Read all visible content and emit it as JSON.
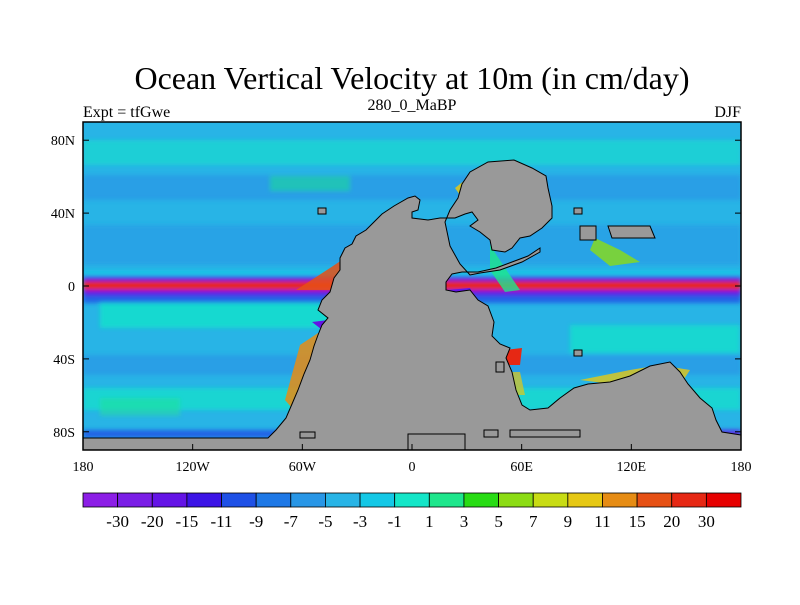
{
  "chart_data": {
    "type": "heatmap",
    "title": "Ocean Vertical Velocity at 10m (in cm/day)",
    "left_string": "Expt = tfGwe",
    "center_string": "280_0_MaBP",
    "right_string": "DJF",
    "x_range": [
      -180,
      180
    ],
    "y_range": [
      -90,
      90
    ],
    "x_ticks": [
      {
        "value": -180,
        "label": "180"
      },
      {
        "value": -120,
        "label": "120W"
      },
      {
        "value": -60,
        "label": "60W"
      },
      {
        "value": 0,
        "label": "0"
      },
      {
        "value": 60,
        "label": "60E"
      },
      {
        "value": 120,
        "label": "120E"
      },
      {
        "value": 180,
        "label": "180"
      }
    ],
    "y_ticks": [
      {
        "value": 80,
        "label": "80N"
      },
      {
        "value": 40,
        "label": "40N"
      },
      {
        "value": 0,
        "label": "0"
      },
      {
        "value": -40,
        "label": "40S"
      },
      {
        "value": -80,
        "label": "80S"
      }
    ],
    "colorbar": {
      "labels": [
        "-30",
        "-20",
        "-15",
        "-11",
        "-9",
        "-7",
        "-5",
        "-3",
        "-1",
        "1",
        "3",
        "5",
        "7",
        "9",
        "11",
        "15",
        "20",
        "30"
      ],
      "colors": [
        "#8c1ee6",
        "#7a1ee6",
        "#6414e6",
        "#3c14e6",
        "#1e50e6",
        "#1e78e6",
        "#2896e6",
        "#28b4e6",
        "#14c8e6",
        "#14e6c8",
        "#1ee68c",
        "#28dc14",
        "#8cdc14",
        "#c8dc14",
        "#e6c814",
        "#e68c14",
        "#e65014",
        "#e62814",
        "#e60000"
      ]
    },
    "colors": {
      "land": "#999999",
      "background_field": "#28b4e6",
      "missing": "#ffffff"
    }
  }
}
